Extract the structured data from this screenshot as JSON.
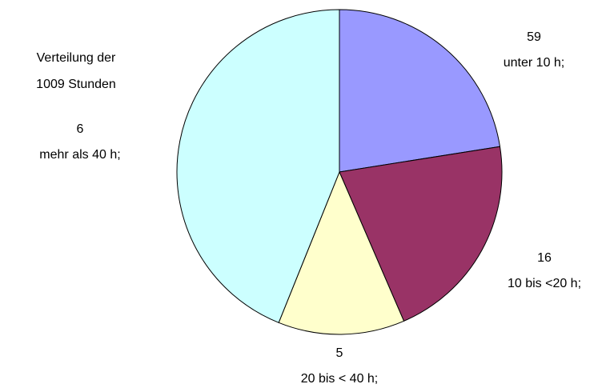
{
  "chart_data": {
    "type": "pie",
    "title_lines": [
      "Verteilung der",
      "1009 Stunden"
    ],
    "categories": [
      "unter 10 h;",
      "10 bis <20 h;",
      "20 bis < 40 h;",
      "mehr als 40 h;"
    ],
    "counts": [
      59,
      16,
      5,
      6
    ],
    "values": [
      227,
      212,
      127,
      443
    ],
    "colors": [
      "#9999ff",
      "#993366",
      "#ffffcc",
      "#ccffff"
    ]
  }
}
